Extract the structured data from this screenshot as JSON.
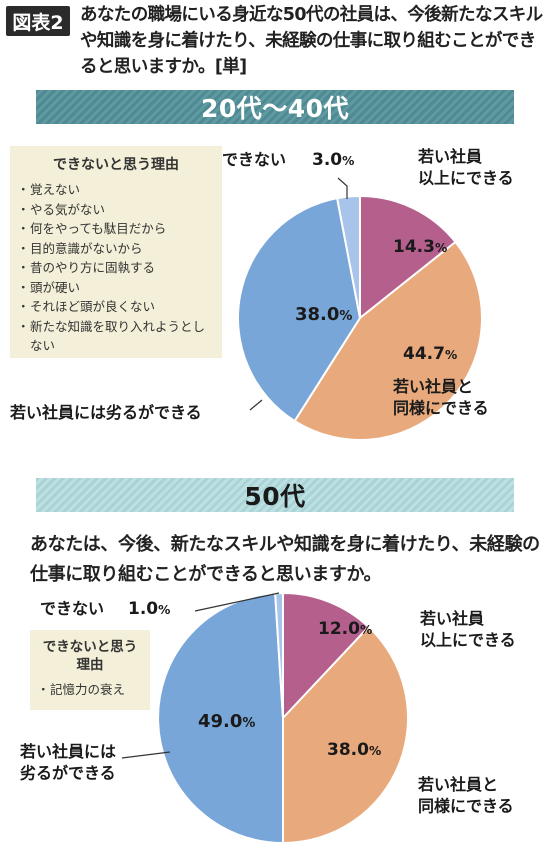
{
  "header": {
    "tag": "図表2",
    "question": "あなたの職場にいる身近な50代の社員は、今後新たなスキルや知識を身に着けたり、未経験の仕事に取り組むことができると思いますか。[単]"
  },
  "sections": [
    {
      "band_label": "20代〜40代"
    },
    {
      "band_label": "50代",
      "question": "あなたは、今後、新たなスキルや知識を身に着けたり、未経験の仕事に取り組むことができると思いますか。"
    }
  ],
  "reasons": [
    {
      "title": "できないと思う理由",
      "items": [
        "覚えない",
        "やる気がない",
        "何をやっても駄目だから",
        "目的意識がないから",
        "昔のやり方に固執する",
        "頭が硬い",
        "それほど頭が良くない",
        "新たな知識を取り入れようとしない"
      ]
    },
    {
      "title": "できないと思う理由",
      "items": [
        "記憶力の衰え"
      ]
    }
  ],
  "colors": {
    "above": "#b55f8d",
    "same": "#e8a97c",
    "inferior": "#79a6d9",
    "cannot": "#a9c4ea"
  },
  "chart_data": [
    {
      "type": "pie",
      "title": "20代〜40代",
      "unit": "%",
      "slices": [
        {
          "label": "若い社員以上にできる",
          "value": 14.3,
          "color_key": "above",
          "display": "14.3"
        },
        {
          "label": "若い社員と同様にできる",
          "value": 44.7,
          "color_key": "same",
          "display": "44.7"
        },
        {
          "label": "若い社員には劣るができる",
          "value": 38.0,
          "color_key": "inferior",
          "display": "38.0"
        },
        {
          "label": "できない",
          "value": 3.0,
          "color_key": "cannot",
          "display": "3.0"
        }
      ]
    },
    {
      "type": "pie",
      "title": "50代",
      "unit": "%",
      "slices": [
        {
          "label": "若い社員以上にできる",
          "value": 12.0,
          "color_key": "above",
          "display": "12.0"
        },
        {
          "label": "若い社員と同様にできる",
          "value": 38.0,
          "color_key": "same",
          "display": "38.0"
        },
        {
          "label": "若い社員には劣るができる",
          "value": 49.0,
          "color_key": "inferior",
          "display": "49.0"
        },
        {
          "label": "できない",
          "value": 1.0,
          "color_key": "cannot",
          "display": "1.0"
        }
      ]
    }
  ],
  "callouts": [
    {
      "above_lines": [
        "若い社員",
        "以上にできる"
      ],
      "same_lines": [
        "若い社員と",
        "同様にできる"
      ],
      "inferior_lines": [
        "若い社員には劣るができる"
      ],
      "cannot_label": "できない"
    },
    {
      "above_lines": [
        "若い社員",
        "以上にできる"
      ],
      "same_lines": [
        "若い社員と",
        "同様にできる"
      ],
      "inferior_lines": [
        "若い社員には",
        "劣るができる"
      ],
      "cannot_label": "できない"
    }
  ]
}
